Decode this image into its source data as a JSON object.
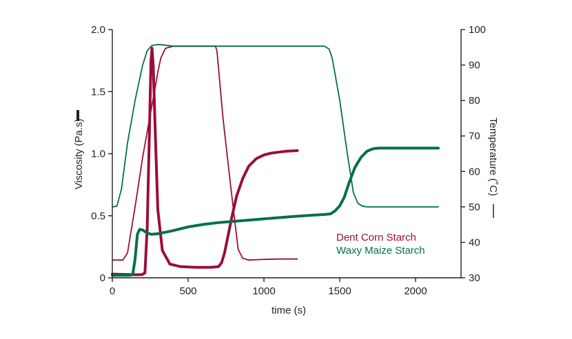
{
  "chart_data": {
    "type": "line",
    "xlabel": "time (s)",
    "ylabel_left": "Viscosity (Pa.s)",
    "ylabel_right": "Temperature (˚C)",
    "xlim": [
      0,
      2300
    ],
    "ylim_left": [
      0,
      2.0
    ],
    "ylim_right": [
      30,
      100
    ],
    "x_ticks": [
      0,
      500,
      1000,
      1500,
      2000
    ],
    "x_tick_labels": [
      "0",
      "500",
      "1000",
      "1500",
      "2000"
    ],
    "y_left_ticks": [
      0,
      0.5,
      1.0,
      1.5,
      2.0
    ],
    "y_left_tick_labels": [
      "0",
      "0.5",
      "1.0",
      "1.5",
      "2.0"
    ],
    "y_right_ticks": [
      30,
      40,
      50,
      60,
      70,
      80,
      90,
      100
    ],
    "y_right_tick_labels": [
      "30",
      "40",
      "50",
      "60",
      "70",
      "80",
      "90",
      "100"
    ],
    "grid": false,
    "legend_position": "lower-right",
    "legend": [
      {
        "label": "Dent Corn Starch",
        "color": "#9b0d3a"
      },
      {
        "label": "Waxy Maize Starch",
        "color": "#00704a"
      }
    ],
    "series": [
      {
        "name": "Dent Corn Starch",
        "quantity": "viscosity",
        "axis": "left",
        "color": "#9b0d3a",
        "x": [
          0,
          150,
          195,
          215,
          230,
          245,
          255,
          262,
          270,
          285,
          300,
          330,
          380,
          450,
          550,
          650,
          700,
          720,
          740,
          760,
          790,
          820,
          860,
          900,
          950,
          1000,
          1050,
          1100,
          1150,
          1220
        ],
        "y": [
          0.03,
          0.025,
          0.025,
          0.04,
          0.4,
          1.2,
          1.75,
          1.85,
          1.7,
          1.1,
          0.55,
          0.22,
          0.11,
          0.09,
          0.085,
          0.085,
          0.09,
          0.12,
          0.2,
          0.32,
          0.5,
          0.66,
          0.8,
          0.9,
          0.96,
          0.99,
          1.005,
          1.013,
          1.02,
          1.025
        ]
      },
      {
        "name": "Waxy Maize Starch",
        "quantity": "viscosity",
        "axis": "left",
        "color": "#00704a",
        "x": [
          0,
          120,
          135,
          150,
          165,
          180,
          200,
          230,
          260,
          300,
          400,
          500,
          600,
          700,
          800,
          900,
          1000,
          1100,
          1200,
          1300,
          1400,
          1440,
          1470,
          1500,
          1530,
          1560,
          1600,
          1640,
          1680,
          1720,
          1760,
          1800,
          1900,
          2000,
          2100,
          2150
        ],
        "y": [
          0.02,
          0.02,
          0.03,
          0.15,
          0.35,
          0.39,
          0.385,
          0.36,
          0.35,
          0.355,
          0.38,
          0.41,
          0.43,
          0.445,
          0.455,
          0.465,
          0.475,
          0.485,
          0.495,
          0.503,
          0.51,
          0.515,
          0.54,
          0.58,
          0.65,
          0.76,
          0.89,
          0.97,
          1.02,
          1.04,
          1.045,
          1.045,
          1.045,
          1.045,
          1.045,
          1.045
        ]
      },
      {
        "name": "Dent Corn Starch",
        "quantity": "temperature",
        "axis": "right",
        "color": "#9b0d3a",
        "x": [
          0,
          70,
          100,
          150,
          200,
          250,
          280,
          300,
          320,
          350,
          400,
          500,
          600,
          680,
          690,
          730,
          780,
          830,
          860,
          900,
          1000,
          1100,
          1200,
          1220
        ],
        "y": [
          35,
          35,
          37,
          50,
          64,
          76,
          83,
          88,
          92,
          94.7,
          95.3,
          95.3,
          95.3,
          95.3,
          94,
          75,
          56,
          38,
          35.5,
          35,
          35.2,
          35.3,
          35.3,
          35.3
        ]
      },
      {
        "name": "Waxy Maize Starch",
        "quantity": "temperature",
        "axis": "right",
        "color": "#00704a",
        "x": [
          0,
          30,
          60,
          100,
          150,
          200,
          230,
          260,
          300,
          350,
          400,
          600,
          800,
          1000,
          1200,
          1400,
          1430,
          1450,
          1500,
          1550,
          1590,
          1620,
          1650,
          1680,
          1700,
          1800,
          1900,
          2000,
          2100,
          2150
        ],
        "y": [
          50,
          50.2,
          55,
          68,
          80,
          90,
          94,
          95.5,
          95.8,
          95.6,
          95.3,
          95.3,
          95.3,
          95.3,
          95.3,
          95.3,
          94.5,
          92,
          80,
          65,
          54,
          51,
          50.2,
          50,
          50,
          50,
          50,
          50,
          50,
          50
        ]
      }
    ]
  }
}
